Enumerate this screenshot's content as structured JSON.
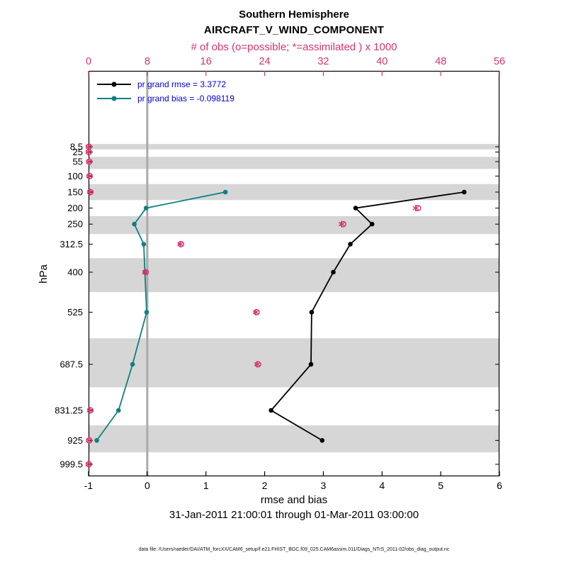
{
  "header": {
    "title": "Southern Hemisphere",
    "subtitle": "AIRCRAFT_V_WIND_COMPONENT",
    "obs_axis_title": "# of obs (o=possible; *=assimilated ) x 1000"
  },
  "legend": {
    "rmse_label": "pr grand rmse = 3.3772",
    "bias_label": "pr grand bias = -0.098119"
  },
  "axis": {
    "xlabel": "rmse and bias",
    "ylabel": "hPa",
    "timespan": "31-Jan-2011 21:00:01 through 01-Mar-2011 03:00:00"
  },
  "footer": {
    "datafile": "data file: /Users/raeder/DAI/ATM_forcXX/CAM6_setup/f.e21.FHIST_BGC.f09_025.CAM6assim.011/Diags_NTrS_2011-02/obs_diag_output.nc"
  },
  "colors": {
    "obs_pink": "#d6336c",
    "bias_teal": "#0f8080",
    "rmse_black": "#000000",
    "legend_blue": "#0000dd",
    "band_gray": "#d6d6d6",
    "zero_line_gray": "#aaaaaa"
  },
  "chart_data": {
    "type": "line",
    "profile": "vertical-pressure",
    "title": "Southern Hemisphere",
    "subtitle": "AIRCRAFT_V_WIND_COMPONENT",
    "xlabel": "rmse and bias",
    "ylabel": "hPa",
    "y_levels_hpa": [
      8.5,
      25,
      55,
      100,
      150,
      200,
      250,
      312.5,
      400,
      525,
      687.5,
      831.25,
      925,
      999.5
    ],
    "shaded_band_levels": [
      8.5,
      55,
      150,
      250,
      400,
      687.5,
      925
    ],
    "bottom_axis": {
      "label": "rmse and bias",
      "min": -1,
      "max": 6,
      "ticks": [
        -1,
        0,
        1,
        2,
        3,
        4,
        5,
        6
      ],
      "zero_reference_line": true
    },
    "top_axis": {
      "label": "# of obs (o=possible; *=assimilated ) x 1000",
      "min": 0,
      "max": 56,
      "ticks": [
        0,
        8,
        16,
        24,
        32,
        40,
        48,
        56
      ]
    },
    "series": [
      {
        "name": "rmse",
        "axis": "bottom",
        "color": "#000000",
        "grand_value": 3.3772,
        "levels": [
          150,
          200,
          250,
          312.5,
          400,
          525,
          687.5,
          831.25,
          925
        ],
        "values": [
          5.4,
          3.55,
          3.83,
          3.46,
          3.17,
          2.8,
          2.79,
          2.11,
          2.98
        ]
      },
      {
        "name": "bias",
        "axis": "bottom",
        "color": "#0f8080",
        "grand_value": -0.098119,
        "levels": [
          150,
          200,
          250,
          312.5,
          400,
          525,
          687.5,
          831.25,
          925
        ],
        "values": [
          1.33,
          -0.02,
          -0.22,
          -0.06,
          -0.04,
          -0.01,
          -0.25,
          -0.49,
          -0.86
        ]
      },
      {
        "name": "obs_possible",
        "axis": "top",
        "marker": "o",
        "color": "#d6336c",
        "levels": [
          8.5,
          25,
          55,
          100,
          150,
          200,
          250,
          312.5,
          400,
          525,
          687.5,
          831.25,
          925,
          999.5
        ],
        "values": [
          0.05,
          0.05,
          0.1,
          0.15,
          0.25,
          44.9,
          34.7,
          12.6,
          7.8,
          22.9,
          23.1,
          0.25,
          0.1,
          0.05
        ]
      },
      {
        "name": "obs_assimilated",
        "axis": "top",
        "marker": "*",
        "color": "#d6336c",
        "levels": [
          8.5,
          25,
          55,
          100,
          150,
          200,
          250,
          312.5,
          400,
          525,
          687.5,
          831.25,
          925,
          999.5
        ],
        "values": [
          0,
          0,
          0.05,
          0.1,
          0.2,
          44.6,
          34.5,
          12.5,
          7.7,
          22.8,
          23.0,
          0.2,
          0.05,
          0
        ]
      }
    ]
  }
}
